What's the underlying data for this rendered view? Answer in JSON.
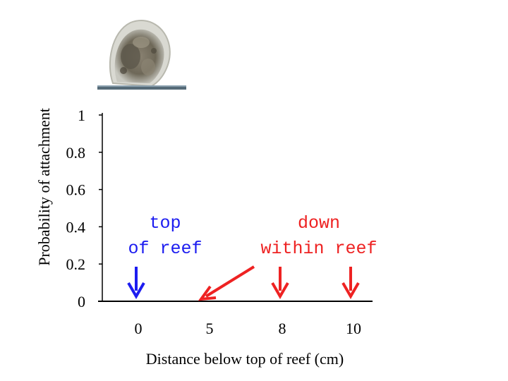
{
  "chart_data": {
    "type": "scatter",
    "title": "",
    "xlabel": "Distance below top of reef (cm)",
    "ylabel": "Probability of attachment",
    "x_categories": [
      "0",
      "5",
      "8",
      "10"
    ],
    "yticks": [
      0,
      0.2,
      0.4,
      0.6,
      0.8,
      1
    ],
    "ytick_labels": [
      "0",
      "0.2",
      "0.4",
      "0.6",
      "0.8",
      "1"
    ],
    "ylim": [
      0,
      1
    ],
    "grid": false,
    "series": [],
    "annotations": [
      {
        "lines": [
          "top",
          "of reef"
        ],
        "color": "#1c1cf0",
        "targets": [
          "0"
        ]
      },
      {
        "lines": [
          "down",
          "within reef"
        ],
        "color": "#ee2222",
        "targets": [
          "5",
          "8",
          "10"
        ]
      }
    ]
  },
  "colors": {
    "axis": "#000000",
    "blue_arrow": "#1c1cf0",
    "red_arrow": "#ee2222"
  },
  "icons": {
    "larva": "oyster-larva-image"
  }
}
